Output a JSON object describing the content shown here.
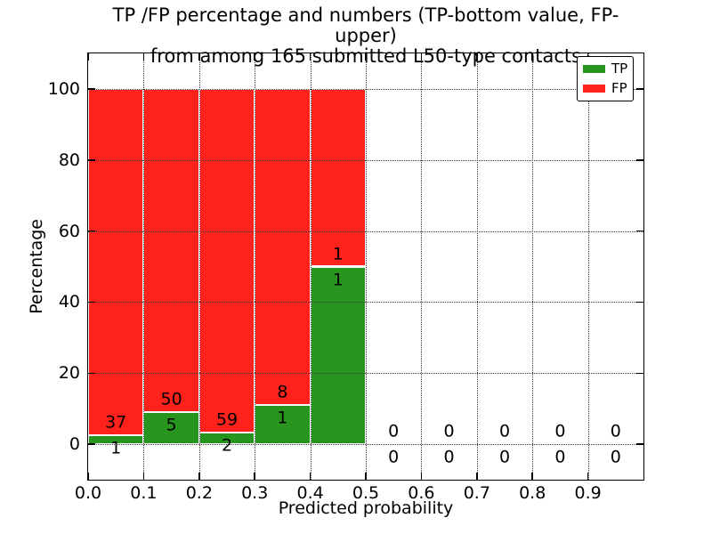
{
  "chart_data": {
    "type": "bar",
    "stacked": true,
    "title_line1": "TP /FP percentage and numbers (TP-bottom value, FP-upper)",
    "title_line2": "from among 165 submitted L50-type contacts",
    "total_submitted": 165,
    "xlabel": "Predicted probability",
    "ylabel": "Percentage",
    "xlim": [
      0.0,
      1.0
    ],
    "ylim": [
      -10,
      110
    ],
    "xtick_labels": [
      "0.0",
      "0.1",
      "0.2",
      "0.3",
      "0.4",
      "0.5",
      "0.6",
      "0.7",
      "0.8",
      "0.9"
    ],
    "ytick_values": [
      0,
      20,
      40,
      60,
      80,
      100
    ],
    "grid_style": "dotted",
    "note": "Each bin shows TP percentage (green, bottom) and FP percentage (red, top) stacked to 100%; labels give raw counts: FP above green top, TP below green top",
    "bins": [
      {
        "x_start": 0.0,
        "x_end": 0.1,
        "tp": 1,
        "fp": 37
      },
      {
        "x_start": 0.1,
        "x_end": 0.2,
        "tp": 5,
        "fp": 50
      },
      {
        "x_start": 0.2,
        "x_end": 0.3,
        "tp": 2,
        "fp": 59
      },
      {
        "x_start": 0.3,
        "x_end": 0.4,
        "tp": 1,
        "fp": 8
      },
      {
        "x_start": 0.4,
        "x_end": 0.5,
        "tp": 1,
        "fp": 1
      },
      {
        "x_start": 0.5,
        "x_end": 0.6,
        "tp": 0,
        "fp": 0
      },
      {
        "x_start": 0.6,
        "x_end": 0.7,
        "tp": 0,
        "fp": 0
      },
      {
        "x_start": 0.7,
        "x_end": 0.8,
        "tp": 0,
        "fp": 0
      },
      {
        "x_start": 0.8,
        "x_end": 0.9,
        "tp": 0,
        "fp": 0
      },
      {
        "x_start": 0.9,
        "x_end": 1.0,
        "tp": 0,
        "fp": 0
      }
    ],
    "colors": {
      "tp": "#28961E",
      "fp": "#FF211C",
      "grid": "#3a3a3a",
      "text": "#000000"
    },
    "legend": {
      "position": "upper-right",
      "entries": [
        {
          "label": "TP",
          "color_key": "tp"
        },
        {
          "label": "FP",
          "color_key": "fp"
        }
      ]
    }
  }
}
